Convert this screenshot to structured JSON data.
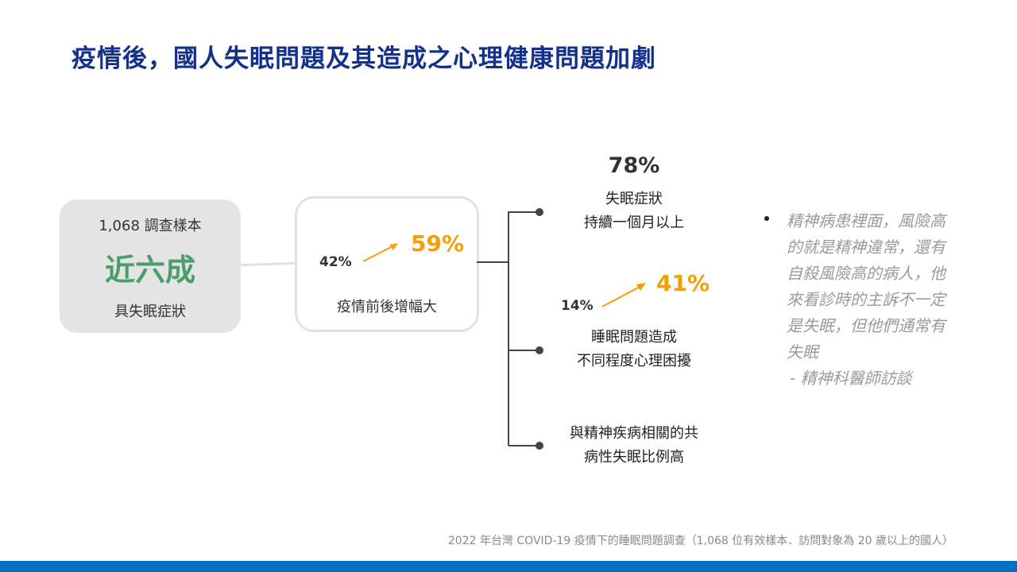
{
  "title": "疫情後，國人失眠問題及其造成之心理健康問題加劇",
  "left_box": {
    "sample": "1,068 調查樣本",
    "headline": "近六成",
    "caption": "具失眠症狀"
  },
  "middle_box": {
    "before": "42%",
    "after": "59%",
    "caption": "疫情前後增幅大"
  },
  "branches": [
    {
      "value": "78%",
      "line1": "失眠症狀",
      "line2": "持續一個月以上"
    },
    {
      "before": "14%",
      "after": "41%",
      "line1": "睡眠問題造成",
      "line2": "不同程度心理困擾"
    },
    {
      "line1": "與精神疾病相關的共",
      "line2": "病性失眠比例高"
    }
  ],
  "quote": {
    "text": "精神病患裡面，風險高的就是精神違常，還有自殺風險高的病人，他來看診時的主訴不一定是失眠，但他們通常有失眠",
    "source": "- 精神科醫師訪談"
  },
  "footer": "2022 年台灣 COVID-19 疫情下的睡眠問題調查（1,068 位有效樣本．訪問對象為 20 歲以上的國人）",
  "colors": {
    "title": "#13308a",
    "green": "#4a9e6b",
    "orange": "#f0a000",
    "bar": "#0070c0"
  }
}
